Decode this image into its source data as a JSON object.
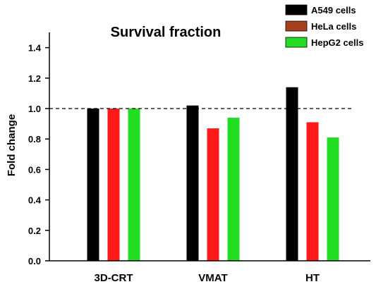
{
  "chart_data": {
    "type": "bar",
    "title": "Survival fraction",
    "xlabel": "",
    "ylabel": "Fold change",
    "ylim": [
      0,
      1.5
    ],
    "yticks": [
      0.0,
      0.2,
      0.4,
      0.6,
      0.8,
      1.0,
      1.2,
      1.4
    ],
    "ytick_labels": [
      "0.0",
      "0.2",
      "0.4",
      "0.6",
      "0.8",
      "1.0",
      "1.2",
      "1.4"
    ],
    "categories": [
      "3D-CRT",
      "VMAT",
      "HT"
    ],
    "series": [
      {
        "name": "A549 cells",
        "color": "#000000",
        "legend_color": "#000000",
        "values": [
          1.0,
          1.02,
          1.14
        ]
      },
      {
        "name": "HeLa cells",
        "color": "#ff1a1a",
        "legend_color": "#a8401e",
        "values": [
          1.0,
          0.87,
          0.91
        ]
      },
      {
        "name": "HepG2 cells",
        "color": "#22dd22",
        "legend_color": "#22dd22",
        "values": [
          1.0,
          0.94,
          0.81
        ]
      }
    ],
    "reference_line": {
      "value": 1.0,
      "style": "dashed"
    },
    "grid": false,
    "legend_position": "top-right"
  }
}
